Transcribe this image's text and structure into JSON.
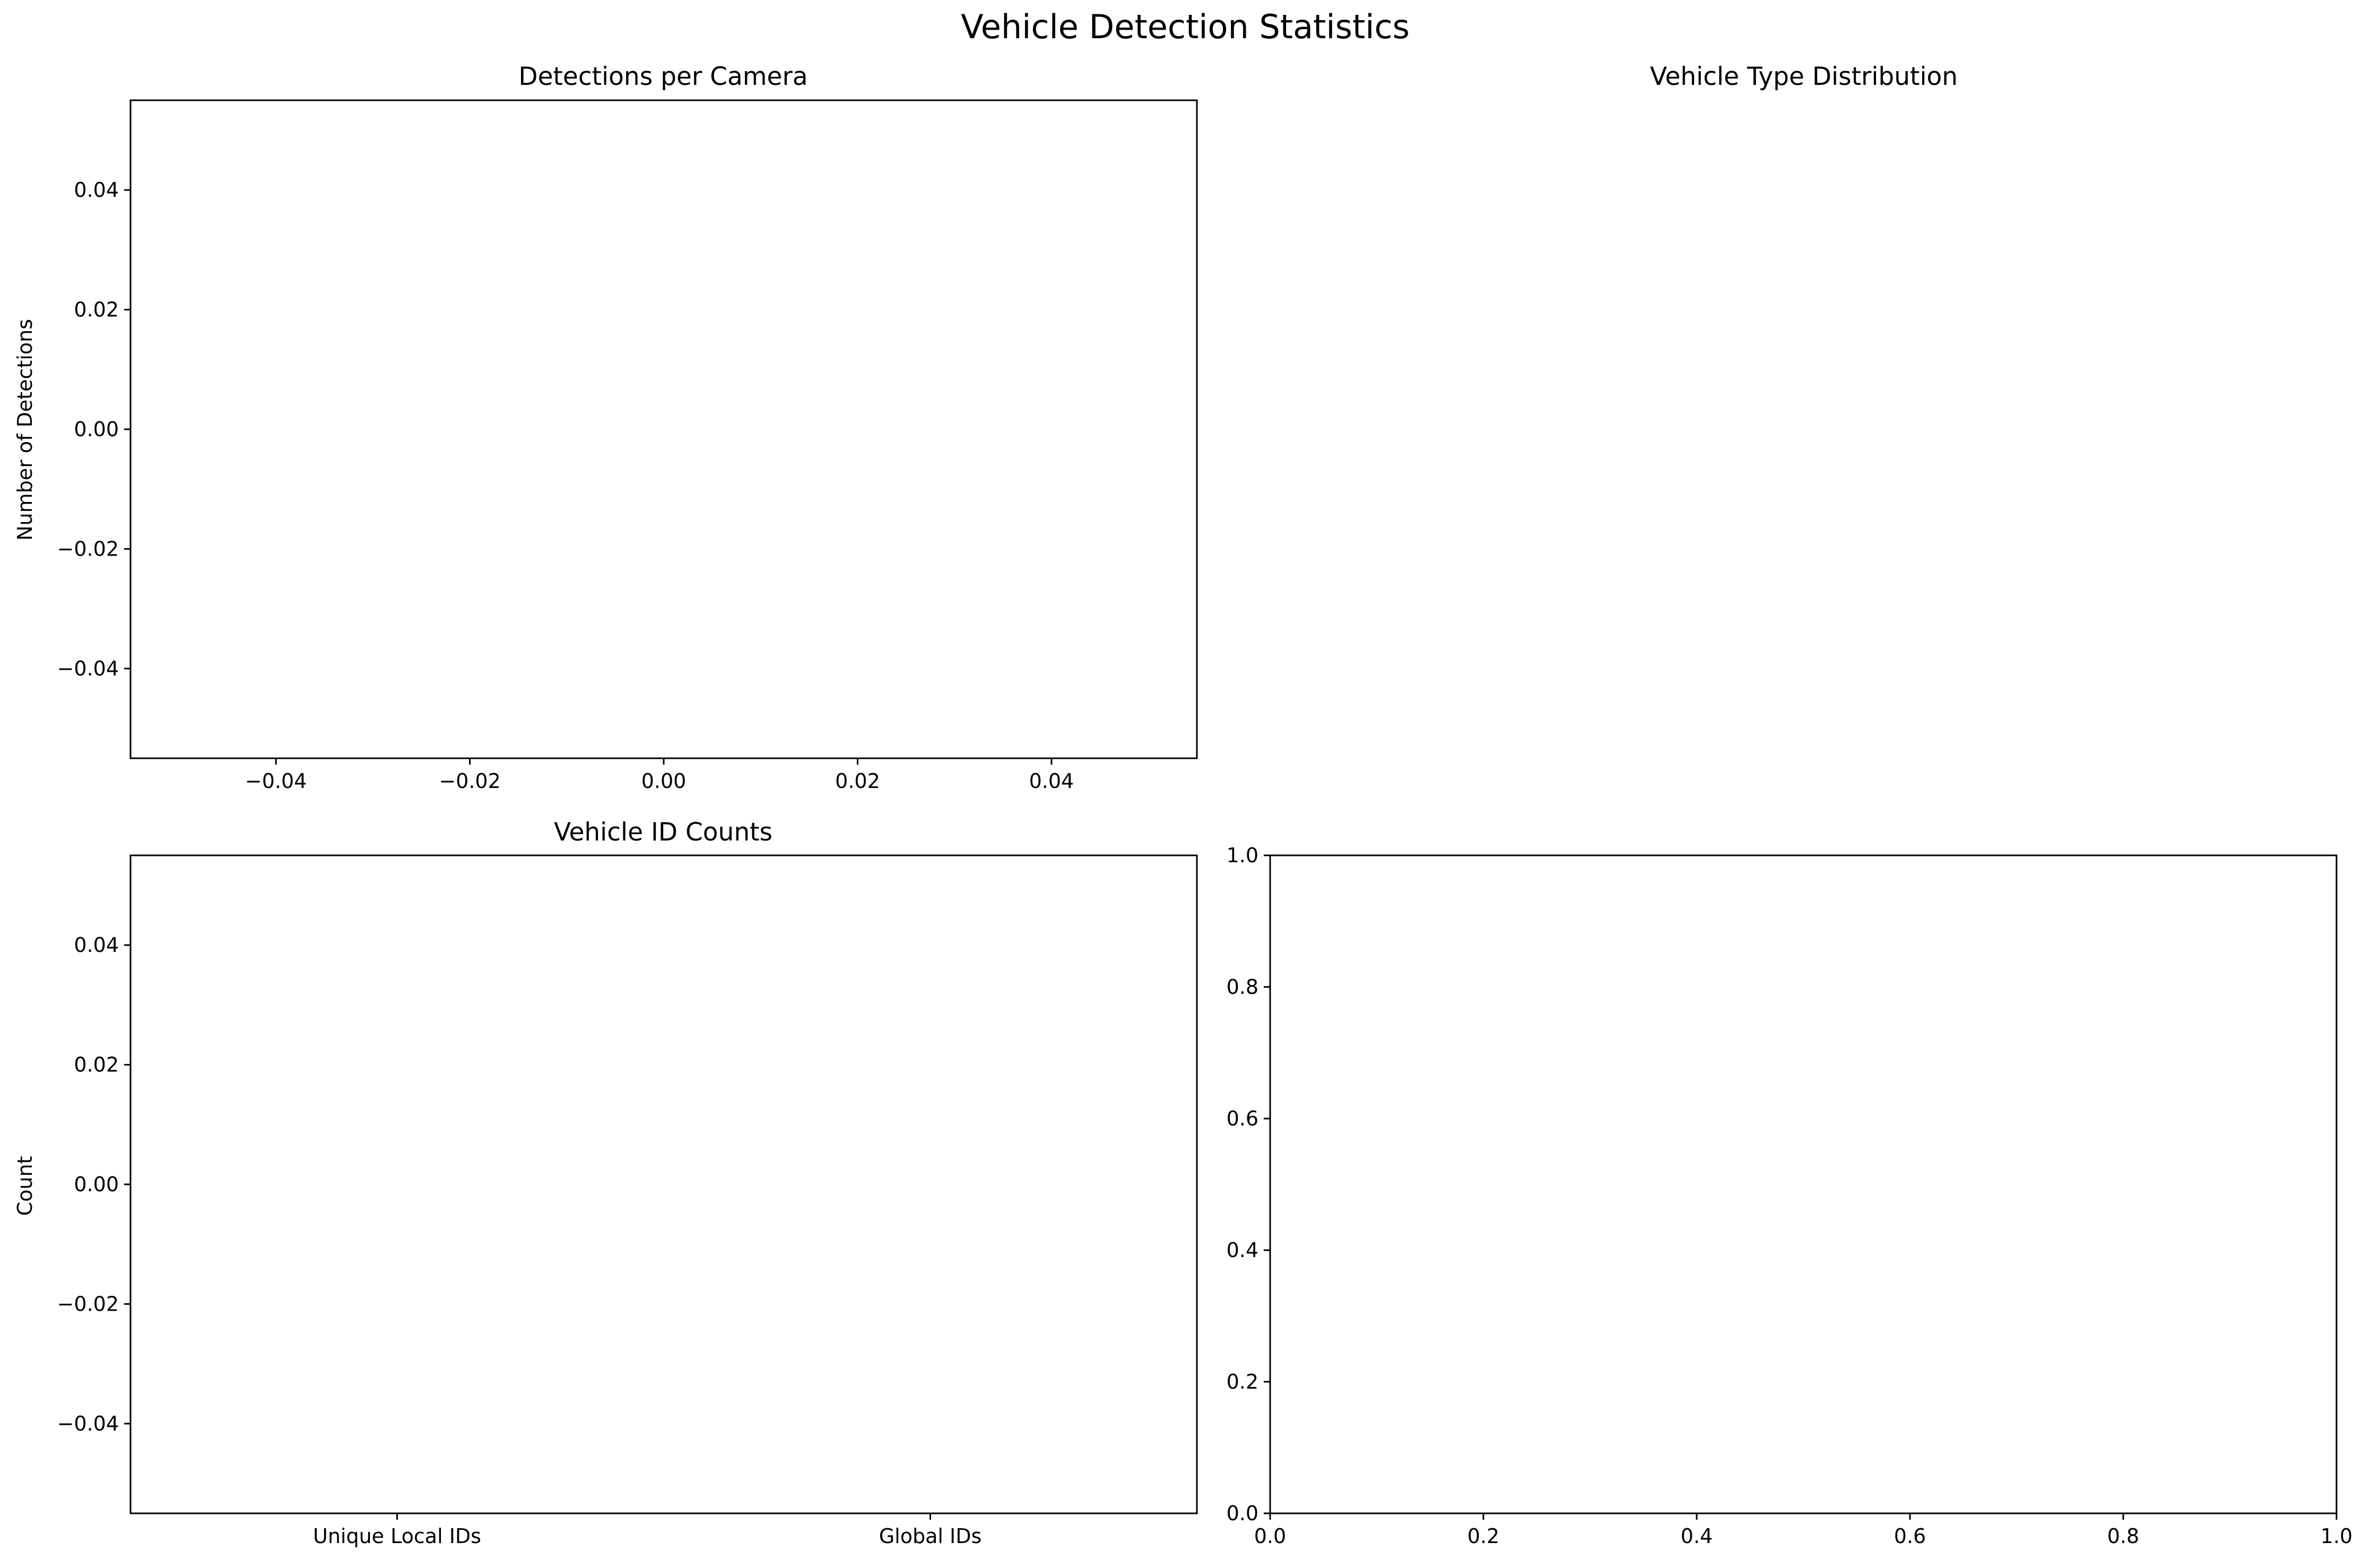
{
  "figure_title": "Vehicle Detection Statistics",
  "chart_data": [
    {
      "type": "bar",
      "title": "Detections per Camera",
      "xlabel": "",
      "ylabel": "Number of Detections",
      "categories": [],
      "values": [],
      "xlim": [
        -0.055,
        0.055
      ],
      "ylim": [
        -0.055,
        0.055
      ],
      "xticks": [
        -0.04,
        -0.02,
        0.0,
        0.02,
        0.04
      ],
      "xtick_labels": [
        "−0.04",
        "−0.02",
        "0.00",
        "0.02",
        "0.04"
      ],
      "yticks": [
        0.04,
        0.02,
        0.0,
        -0.02,
        -0.04
      ],
      "ytick_labels": [
        "0.04",
        "0.02",
        "0.00",
        "−0.02",
        "−0.04"
      ],
      "grid": false
    },
    {
      "type": "pie",
      "title": "Vehicle Type Distribution",
      "labels": [],
      "values": [],
      "axis_visible": false
    },
    {
      "type": "bar",
      "title": "Vehicle ID Counts",
      "xlabel": "",
      "ylabel": "Count",
      "categories": [
        "Unique Local IDs",
        "Global IDs"
      ],
      "values": [
        0,
        0
      ],
      "xlim": [
        -0.5,
        1.5
      ],
      "ylim": [
        -0.055,
        0.055
      ],
      "yticks": [
        0.04,
        0.02,
        0.0,
        -0.02,
        -0.04
      ],
      "ytick_labels": [
        "0.04",
        "0.02",
        "0.00",
        "−0.02",
        "−0.04"
      ],
      "grid": false
    },
    {
      "type": "scatter",
      "title": "",
      "xlabel": "",
      "ylabel": "",
      "x": [],
      "y": [],
      "xlim": [
        0.0,
        1.0
      ],
      "ylim": [
        0.0,
        1.0
      ],
      "xticks": [
        0.0,
        0.2,
        0.4,
        0.6,
        0.8,
        1.0
      ],
      "xtick_labels": [
        "0.0",
        "0.2",
        "0.4",
        "0.6",
        "0.8",
        "1.0"
      ],
      "yticks": [
        1.0,
        0.8,
        0.6,
        0.4,
        0.2,
        0.0
      ],
      "ytick_labels": [
        "1.0",
        "0.8",
        "0.6",
        "0.4",
        "0.2",
        "0.0"
      ],
      "grid": false
    }
  ]
}
